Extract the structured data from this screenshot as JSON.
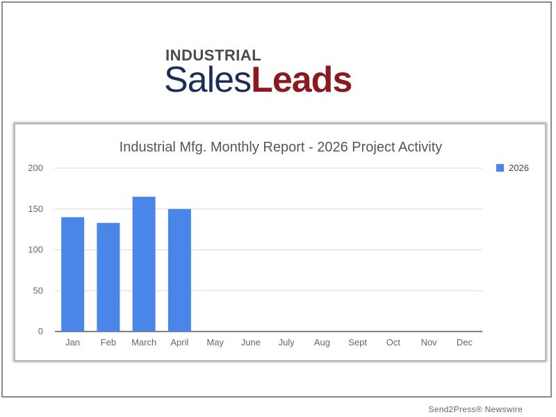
{
  "logo": {
    "top_word": "INDUSTRIAL",
    "word1": "Sales",
    "word2": "Leads"
  },
  "footer": {
    "credit": "Send2Press® Newswire"
  },
  "colors": {
    "bar": "#4a86e8",
    "grid": "#d9d9d9",
    "axis_text": "#666666",
    "title_text": "#555555",
    "logo_navy": "#1c2d5a",
    "logo_red": "#8b1a1f"
  },
  "chart_data": {
    "type": "bar",
    "title": "Industrial Mfg. Monthly Report - 2026 Project Activity",
    "xlabel": "",
    "ylabel": "",
    "categories": [
      "Jan",
      "Feb",
      "March",
      "April",
      "May",
      "June",
      "July",
      "Aug",
      "Sept",
      "Oct",
      "Nov",
      "Dec"
    ],
    "series": [
      {
        "name": "2026",
        "values": [
          140,
          133,
          165,
          150,
          null,
          null,
          null,
          null,
          null,
          null,
          null,
          null
        ]
      }
    ],
    "ylim": [
      0,
      200
    ],
    "yticks": [
      0,
      50,
      100,
      150,
      200
    ],
    "grid": true,
    "legend": "right"
  }
}
